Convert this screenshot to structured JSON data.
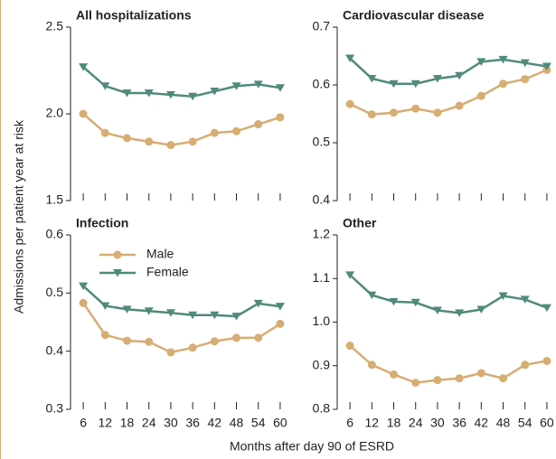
{
  "ylabel": "Admissions per patient year at risk",
  "xlabel": "Months after day 90 of ESRD",
  "chart_data": [
    {
      "type": "line",
      "title": "All hospitalizations",
      "x": [
        6,
        12,
        18,
        24,
        30,
        36,
        42,
        48,
        54,
        60
      ],
      "xlim": [
        2.5,
        62.5
      ],
      "xticks": [
        6,
        12,
        18,
        24,
        30,
        36,
        42,
        48,
        54,
        60
      ],
      "ylim": [
        1.5,
        2.5
      ],
      "yticks": [
        1.5,
        {
          "value": 2,
          "label": "2.0"
        },
        2.5
      ],
      "series": [
        {
          "color": "#d6ad72",
          "values": [
            2.0,
            1.89,
            1.86,
            1.84,
            1.82,
            1.84,
            1.89,
            1.9,
            1.94,
            1.98
          ]
        },
        {
          "color": "#4f8a7b",
          "values": [
            2.27,
            2.16,
            2.12,
            2.12,
            2.11,
            2.1,
            2.13,
            2.16,
            2.17,
            2.15
          ]
        }
      ]
    },
    {
      "type": "line",
      "title": "Cardiovascular disease",
      "x": [
        6,
        12,
        18,
        24,
        30,
        36,
        42,
        48,
        54,
        60
      ],
      "xlim": [
        2.5,
        62.5
      ],
      "xticks": [
        6,
        12,
        18,
        24,
        30,
        36,
        42,
        48,
        54,
        60
      ],
      "ylim": [
        0.4,
        0.7
      ],
      "yticks": [
        0.4,
        0.5,
        0.6,
        0.7
      ],
      "series": [
        {
          "color": "#d6ad72",
          "values": [
            0.567,
            0.549,
            0.552,
            0.559,
            0.552,
            0.564,
            0.581,
            0.602,
            0.61,
            0.626
          ]
        },
        {
          "color": "#4f8a7b",
          "values": [
            0.646,
            0.611,
            0.602,
            0.602,
            0.611,
            0.616,
            0.64,
            0.644,
            0.638,
            0.632
          ]
        }
      ]
    },
    {
      "type": "line",
      "title": "Infection",
      "x": [
        6,
        12,
        18,
        24,
        30,
        36,
        42,
        48,
        54,
        60
      ],
      "xlim": [
        2.5,
        62.5
      ],
      "xticks": [
        6,
        12,
        18,
        24,
        30,
        36,
        42,
        48,
        54,
        60
      ],
      "ylim": [
        0.3,
        0.6
      ],
      "yticks": [
        0.3,
        0.4,
        0.5,
        0.6
      ],
      "legend": "upper left",
      "series": [
        {
          "name": "Male",
          "color": "#d6ad72",
          "values": [
            0.483,
            0.428,
            0.418,
            0.416,
            0.398,
            0.406,
            0.417,
            0.423,
            0.423,
            0.447
          ]
        },
        {
          "name": "Female",
          "color": "#4f8a7b",
          "values": [
            0.512,
            0.478,
            0.472,
            0.469,
            0.466,
            0.462,
            0.462,
            0.46,
            0.482,
            0.477
          ]
        }
      ]
    },
    {
      "type": "line",
      "title": "Other",
      "x": [
        6,
        12,
        18,
        24,
        30,
        36,
        42,
        48,
        54,
        60
      ],
      "xlim": [
        2.5,
        62.5
      ],
      "xticks": [
        6,
        12,
        18,
        24,
        30,
        36,
        42,
        48,
        54,
        60
      ],
      "ylim": [
        0.8,
        1.2
      ],
      "yticks": [
        0.8,
        0.9,
        {
          "value": 1,
          "label": "1.0"
        },
        1.1,
        1.2
      ],
      "series": [
        {
          "color": "#d6ad72",
          "values": [
            0.946,
            0.902,
            0.88,
            0.861,
            0.867,
            0.871,
            0.883,
            0.871,
            0.902,
            0.911
          ]
        },
        {
          "color": "#4f8a7b",
          "values": [
            1.108,
            1.062,
            1.047,
            1.045,
            1.027,
            1.021,
            1.029,
            1.06,
            1.052,
            1.033
          ]
        }
      ]
    }
  ]
}
